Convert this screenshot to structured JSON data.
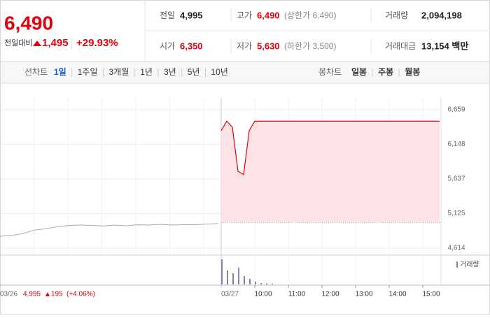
{
  "header": {
    "price": "6,490",
    "change_label": "전일대비",
    "change": "1,495",
    "rate": "+29.93%"
  },
  "stats": [
    [
      {
        "label": "전일",
        "value": "4,995"
      },
      {
        "label": "고가",
        "value": "6,490",
        "note": "(상한가 6,490)"
      },
      {
        "label": "거래량",
        "value": "2,094,198"
      }
    ],
    [
      {
        "label": "시가",
        "value": "6,350"
      },
      {
        "label": "저가",
        "value": "5,630",
        "note": "(하한가 3,500)"
      },
      {
        "label": "거래대금",
        "value": "13,154 백만"
      }
    ]
  ],
  "tabs": {
    "line_label": "선차트",
    "line_items": [
      "1일",
      "1주일",
      "3개월",
      "1년",
      "3년",
      "5년",
      "10년"
    ],
    "candle_label": "봉차트",
    "candle_items": [
      "일봉",
      "주봉",
      "월봉"
    ]
  },
  "chart": {
    "yticks": [
      {
        "value": 6659,
        "label": "6,659"
      },
      {
        "value": 6148,
        "label": "6,148"
      },
      {
        "value": 5637,
        "label": "5,637"
      },
      {
        "value": 5125,
        "label": "5,125"
      },
      {
        "value": 4614,
        "label": "4,614"
      }
    ],
    "ylim": [
      4614,
      6659
    ],
    "prev_close": 4995,
    "prev_day": [
      4790,
      4800,
      4830,
      4880,
      4900,
      4930,
      4950,
      4955,
      4950,
      4940,
      4955,
      4945,
      4960,
      4955,
      4965,
      4955,
      4960,
      4960,
      4970,
      4975
    ],
    "today": [
      6350,
      6490,
      6400,
      5750,
      5700,
      6350,
      6490,
      6490,
      6490,
      6490,
      6490,
      6490,
      6490,
      6490,
      6490,
      6490,
      6490,
      6490,
      6490,
      6490,
      6490,
      6490,
      6490,
      6490,
      6490,
      6490,
      6490,
      6490,
      6490,
      6490,
      6490,
      6490,
      6490,
      6490,
      6490,
      6490,
      6490,
      6490,
      6490,
      6490
    ],
    "volume": [
      90,
      50,
      40,
      60,
      30,
      20,
      10,
      5,
      4,
      3,
      0,
      0,
      0,
      0,
      0,
      0,
      0,
      0,
      0,
      0,
      0,
      0,
      0,
      0,
      0,
      0,
      0,
      0,
      0,
      0,
      0,
      0,
      0,
      0,
      0,
      0,
      0,
      0,
      0,
      0
    ],
    "volume_label": "거래량",
    "day1": "03/26",
    "day2": "03/27",
    "xticks": [
      "10:00",
      "11:00",
      "12:00",
      "13:00",
      "14:00",
      "15:00"
    ],
    "footer": {
      "close": "4,995",
      "change": "195",
      "rate": "(+4.06%)"
    }
  }
}
